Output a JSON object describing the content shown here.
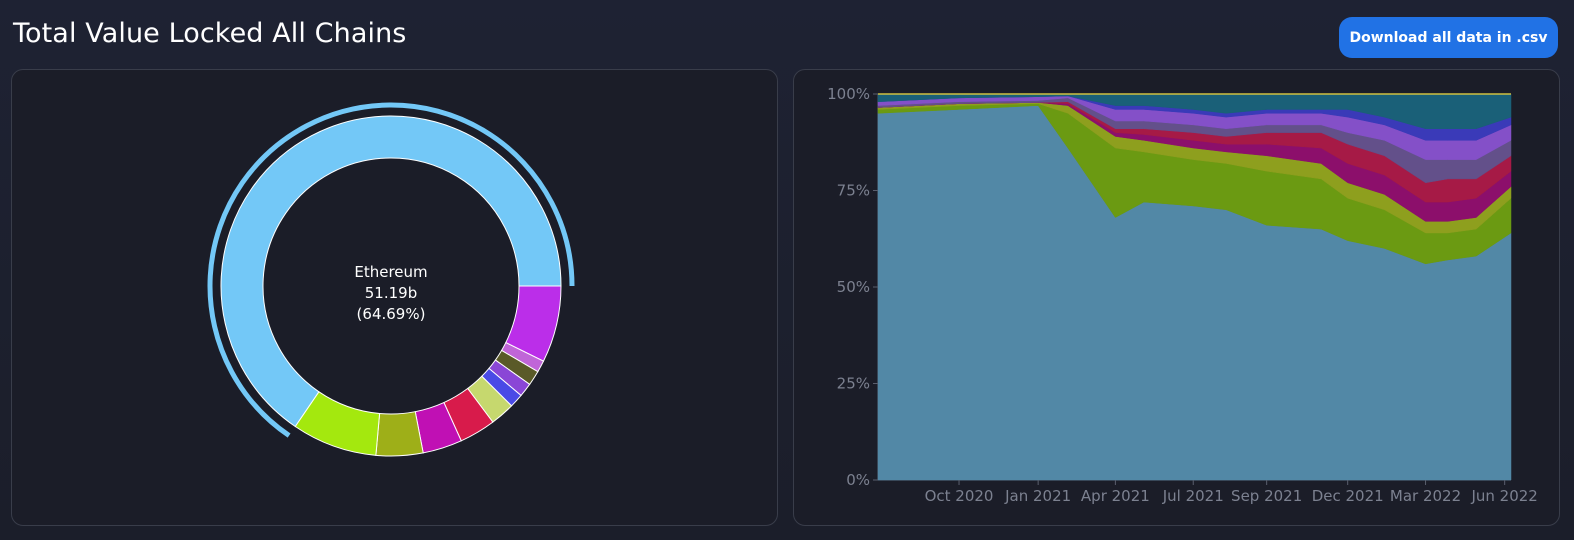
{
  "header": {
    "title": "Total Value Locked All Chains",
    "download_label": "Download all data in .csv"
  },
  "colors": {
    "accent": "#2172e5",
    "ethereum": "#73c8f7"
  },
  "chart_data": [
    {
      "type": "pie",
      "variant": "donut",
      "active": {
        "name": "Ethereum",
        "value_label": "51.19b",
        "percent_label": "(64.69%)"
      },
      "slices": [
        {
          "value": 64.69,
          "color": "#73c8f7"
        },
        {
          "value": 7.2,
          "color": "#bb2ee9"
        },
        {
          "value": 1.1,
          "color": "#c065d8"
        },
        {
          "value": 1.4,
          "color": "#5a5a28"
        },
        {
          "value": 1.3,
          "color": "#8a46d6"
        },
        {
          "value": 1.3,
          "color": "#4a4ae6"
        },
        {
          "value": 2.3,
          "color": "#c6d86e"
        },
        {
          "value": 3.4,
          "color": "#d81b4b"
        },
        {
          "value": 3.7,
          "color": "#c010b4"
        },
        {
          "value": 4.4,
          "color": "#9eaf18"
        },
        {
          "value": 8.0,
          "color": "#a4e80e"
        }
      ]
    },
    {
      "type": "area",
      "stacked_percent": true,
      "x_ticks": [
        "Oct 2020",
        "Jan 2021",
        "Apr 2021",
        "Jul 2021",
        "Sep 2021",
        "Dec 2021",
        "Mar 2022",
        "Jun 2022"
      ],
      "y_ticks": [
        "0%",
        "25%",
        "50%",
        "75%",
        "100%"
      ],
      "ylim": [
        0,
        100
      ],
      "x_points": [
        "Jul 2020",
        "Oct 2020",
        "Jan 2021",
        "Feb 2021",
        "Apr 2021",
        "May 2021",
        "Jul 2021",
        "Aug 2021",
        "Sep 2021",
        "Nov 2021",
        "Dec 2021",
        "Jan 2022",
        "Mar 2022",
        "Apr 2022",
        "May 2022",
        "Jun 2022"
      ],
      "series": [
        {
          "color": "#5288a6",
          "values": [
            95,
            96,
            97,
            86,
            68,
            72,
            71,
            70,
            66,
            65,
            62,
            60,
            56,
            57,
            58,
            64
          ]
        },
        {
          "color": "#6b9a12",
          "values": [
            1,
            1,
            0.5,
            9,
            18,
            13,
            12,
            12,
            14,
            13,
            11,
            10,
            8,
            7,
            7,
            9
          ]
        },
        {
          "color": "#8e9f1e",
          "values": [
            0.5,
            0.5,
            0.3,
            2,
            3,
            3,
            3,
            3,
            4,
            4,
            4,
            4,
            3,
            3,
            3,
            3
          ]
        },
        {
          "color": "#8c0f6b",
          "values": [
            0,
            0,
            0,
            0.5,
            1,
            1.5,
            2,
            2,
            3,
            4,
            5,
            5,
            5,
            5,
            5,
            4
          ]
        },
        {
          "color": "#a61a46",
          "values": [
            0,
            0,
            0,
            0.5,
            1,
            1.5,
            2,
            2,
            3,
            4,
            5,
            5,
            5,
            6,
            5,
            4
          ]
        },
        {
          "color": "#63508a",
          "values": [
            0.5,
            0.5,
            0.5,
            1,
            2,
            2,
            2,
            2,
            2,
            2,
            3,
            4,
            6,
            5,
            5,
            4
          ]
        },
        {
          "color": "#8450c8",
          "values": [
            1,
            1,
            1,
            0.5,
            3,
            3,
            3,
            3,
            3,
            3,
            4,
            4,
            5,
            5,
            5,
            4
          ]
        },
        {
          "color": "#3a3ab8",
          "values": [
            0,
            0,
            0,
            0,
            1,
            1,
            1,
            1,
            1,
            1,
            2,
            2,
            3,
            3,
            3,
            2
          ]
        },
        {
          "color": "#1a6078",
          "values": [
            2,
            1,
            0.7,
            0.5,
            3,
            3,
            4,
            5,
            4,
            4,
            4,
            6,
            9,
            9,
            9,
            6
          ]
        }
      ]
    }
  ]
}
